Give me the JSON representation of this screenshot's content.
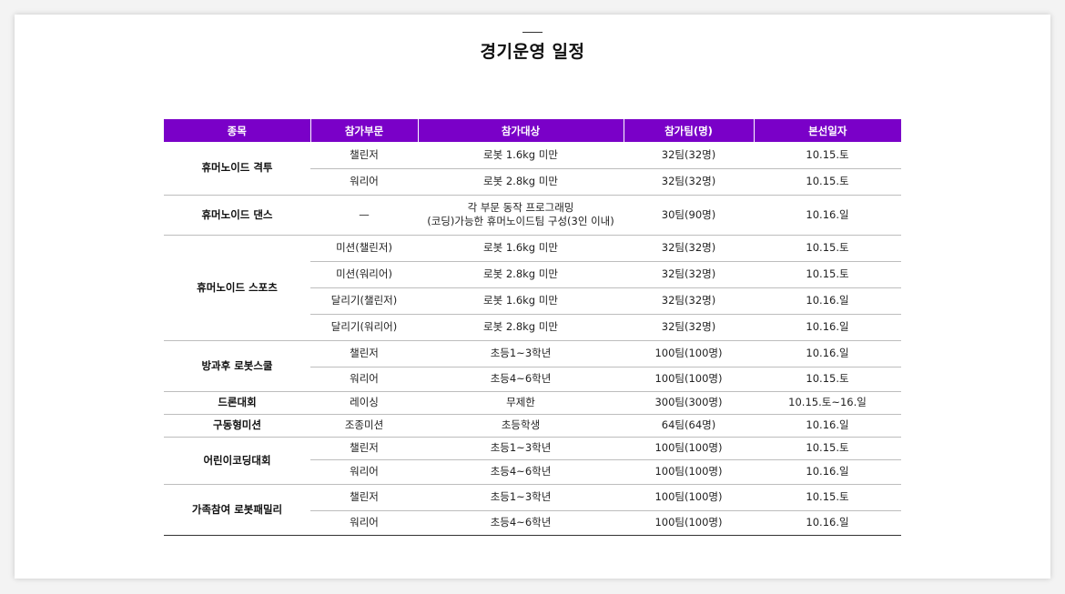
{
  "title": "경기운영 일정",
  "table": {
    "headers": [
      "종목",
      "참가부문",
      "참가대상",
      "참가팀(명)",
      "본선일자"
    ],
    "groups": [
      {
        "category": "휴머노이드 격투",
        "rows": [
          {
            "division": "챌린저",
            "target": "로봇 1.6kg 미만",
            "teams": "32팀(32명)",
            "date": "10.15.토"
          },
          {
            "division": "워리어",
            "target": "로봇 2.8kg 미만",
            "teams": "32팀(32명)",
            "date": "10.15.토"
          }
        ]
      },
      {
        "category": "휴머노이드 댄스",
        "rows": [
          {
            "division": "—",
            "target_line1": "각 부문 동작 프로그래밍",
            "target_line2": "(코딩)가능한 휴머노이드팀 구성(3인 이내)",
            "teams": "30팀(90명)",
            "date": "10.16.일"
          }
        ]
      },
      {
        "category": "휴머노이드 스포츠",
        "rows": [
          {
            "division": "미션(챌린저)",
            "target": "로봇 1.6kg 미만",
            "teams": "32팀(32명)",
            "date": "10.15.토"
          },
          {
            "division": "미션(워리어)",
            "target": "로봇 2.8kg 미만",
            "teams": "32팀(32명)",
            "date": "10.15.토"
          },
          {
            "division": "달리기(챌린저)",
            "target": "로봇 1.6kg 미만",
            "teams": "32팀(32명)",
            "date": "10.16.일"
          },
          {
            "division": "달리기(워리어)",
            "target": "로봇 2.8kg 미만",
            "teams": "32팀(32명)",
            "date": "10.16.일"
          }
        ]
      },
      {
        "category": "방과후 로봇스쿨",
        "rows": [
          {
            "division": "챌린저",
            "target": "초등1~3학년",
            "teams": "100팀(100명)",
            "date": "10.16.일"
          },
          {
            "division": "워리어",
            "target": "초등4~6학년",
            "teams": "100팀(100명)",
            "date": "10.15.토"
          }
        ]
      },
      {
        "category": "드론대회",
        "rows": [
          {
            "division": "레이싱",
            "target": "무제한",
            "teams": "300팀(300명)",
            "date": "10.15.토~16.일"
          }
        ]
      },
      {
        "category": "구동형미션",
        "rows": [
          {
            "division": "조종미션",
            "target": "초등학생",
            "teams": "64팀(64명)",
            "date": "10.16.일"
          }
        ]
      },
      {
        "category": "어린이코딩대회",
        "rows": [
          {
            "division": "챌린저",
            "target": "초등1~3학년",
            "teams": "100팀(100명)",
            "date": "10.15.토"
          },
          {
            "division": "워리어",
            "target": "초등4~6학년",
            "teams": "100팀(100명)",
            "date": "10.16.일"
          }
        ]
      },
      {
        "category": "가족참여 로봇패밀리",
        "rows": [
          {
            "division": "챌린저",
            "target": "초등1~3학년",
            "teams": "100팀(100명)",
            "date": "10.15.토"
          },
          {
            "division": "워리어",
            "target": "초등4~6학년",
            "teams": "100팀(100명)",
            "date": "10.16.일"
          }
        ]
      }
    ]
  },
  "colors": {
    "header_bg": "#7a00c8",
    "header_text": "#ffffff",
    "page_bg": "#f3f3f3",
    "card_bg": "#ffffff"
  }
}
